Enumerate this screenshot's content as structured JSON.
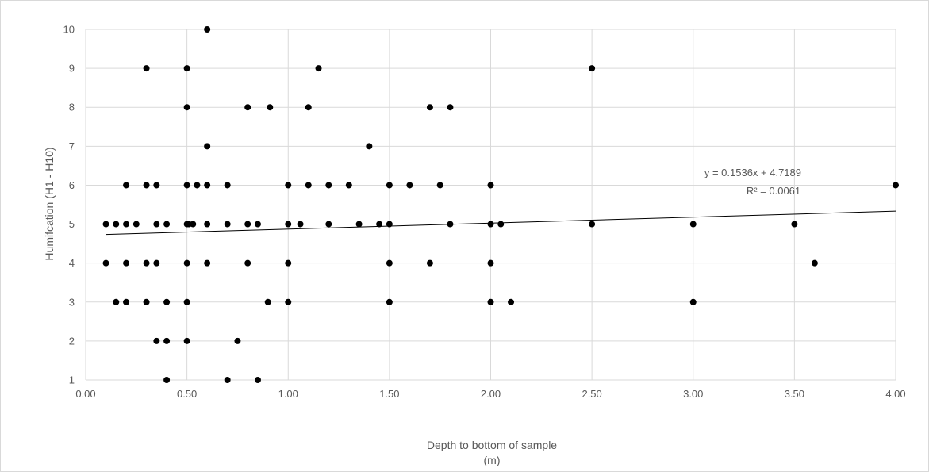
{
  "chart_data": {
    "type": "scatter",
    "title": "",
    "xlabel": "Depth to bottom of sample",
    "xlabel_line2": "(m)",
    "ylabel": "Humifcation (H1 - H10)",
    "xlim": [
      0,
      4
    ],
    "ylim": [
      1,
      10
    ],
    "x_ticks": [
      "0.00",
      "0.50",
      "1.00",
      "1.50",
      "2.00",
      "2.50",
      "3.00",
      "3.50",
      "4.00"
    ],
    "y_ticks": [
      "1",
      "2",
      "3",
      "4",
      "5",
      "6",
      "7",
      "8",
      "9",
      "10"
    ],
    "grid": true,
    "legend": "none",
    "marker_color": "#000000",
    "points": [
      {
        "x": 0.6,
        "y": 10
      },
      {
        "x": 0.3,
        "y": 9
      },
      {
        "x": 0.5,
        "y": 9
      },
      {
        "x": 1.15,
        "y": 9
      },
      {
        "x": 2.5,
        "y": 9
      },
      {
        "x": 0.5,
        "y": 8
      },
      {
        "x": 0.8,
        "y": 8
      },
      {
        "x": 0.91,
        "y": 8
      },
      {
        "x": 1.1,
        "y": 8
      },
      {
        "x": 1.7,
        "y": 8
      },
      {
        "x": 1.8,
        "y": 8
      },
      {
        "x": 0.6,
        "y": 7
      },
      {
        "x": 1.4,
        "y": 7
      },
      {
        "x": 0.2,
        "y": 6
      },
      {
        "x": 0.3,
        "y": 6
      },
      {
        "x": 0.35,
        "y": 6
      },
      {
        "x": 0.5,
        "y": 6
      },
      {
        "x": 0.55,
        "y": 6
      },
      {
        "x": 0.6,
        "y": 6
      },
      {
        "x": 0.7,
        "y": 6
      },
      {
        "x": 1.0,
        "y": 6
      },
      {
        "x": 1.1,
        "y": 6
      },
      {
        "x": 1.2,
        "y": 6
      },
      {
        "x": 1.3,
        "y": 6
      },
      {
        "x": 1.5,
        "y": 6
      },
      {
        "x": 1.6,
        "y": 6
      },
      {
        "x": 1.75,
        "y": 6
      },
      {
        "x": 2.0,
        "y": 6
      },
      {
        "x": 4.0,
        "y": 6
      },
      {
        "x": 0.1,
        "y": 5
      },
      {
        "x": 0.15,
        "y": 5
      },
      {
        "x": 0.2,
        "y": 5
      },
      {
        "x": 0.25,
        "y": 5
      },
      {
        "x": 0.35,
        "y": 5
      },
      {
        "x": 0.4,
        "y": 5
      },
      {
        "x": 0.5,
        "y": 5
      },
      {
        "x": 0.51,
        "y": 5
      },
      {
        "x": 0.53,
        "y": 5
      },
      {
        "x": 0.6,
        "y": 5
      },
      {
        "x": 0.7,
        "y": 5
      },
      {
        "x": 0.8,
        "y": 5
      },
      {
        "x": 0.85,
        "y": 5
      },
      {
        "x": 1.0,
        "y": 5
      },
      {
        "x": 1.06,
        "y": 5
      },
      {
        "x": 1.2,
        "y": 5
      },
      {
        "x": 1.35,
        "y": 5
      },
      {
        "x": 1.45,
        "y": 5
      },
      {
        "x": 1.5,
        "y": 5
      },
      {
        "x": 1.8,
        "y": 5
      },
      {
        "x": 2.0,
        "y": 5
      },
      {
        "x": 2.05,
        "y": 5
      },
      {
        "x": 2.5,
        "y": 5
      },
      {
        "x": 3.0,
        "y": 5
      },
      {
        "x": 3.5,
        "y": 5
      },
      {
        "x": 0.1,
        "y": 4
      },
      {
        "x": 0.2,
        "y": 4
      },
      {
        "x": 0.3,
        "y": 4
      },
      {
        "x": 0.35,
        "y": 4
      },
      {
        "x": 0.5,
        "y": 4
      },
      {
        "x": 0.6,
        "y": 4
      },
      {
        "x": 0.8,
        "y": 4
      },
      {
        "x": 1.0,
        "y": 4
      },
      {
        "x": 1.5,
        "y": 4
      },
      {
        "x": 1.7,
        "y": 4
      },
      {
        "x": 2.0,
        "y": 4
      },
      {
        "x": 3.6,
        "y": 4
      },
      {
        "x": 0.15,
        "y": 3
      },
      {
        "x": 0.2,
        "y": 3
      },
      {
        "x": 0.3,
        "y": 3
      },
      {
        "x": 0.4,
        "y": 3
      },
      {
        "x": 0.5,
        "y": 3
      },
      {
        "x": 0.9,
        "y": 3
      },
      {
        "x": 1.0,
        "y": 3
      },
      {
        "x": 1.5,
        "y": 3
      },
      {
        "x": 2.0,
        "y": 3
      },
      {
        "x": 2.1,
        "y": 3
      },
      {
        "x": 3.0,
        "y": 3
      },
      {
        "x": 0.35,
        "y": 2
      },
      {
        "x": 0.4,
        "y": 2
      },
      {
        "x": 0.5,
        "y": 2
      },
      {
        "x": 0.75,
        "y": 2
      },
      {
        "x": 0.4,
        "y": 1
      },
      {
        "x": 0.7,
        "y": 1
      },
      {
        "x": 0.85,
        "y": 1
      }
    ],
    "trendline": {
      "type": "linear",
      "slope": 0.1536,
      "intercept": 4.7189,
      "x_range": [
        0.1,
        4.0
      ],
      "equation": "y = 0.1536x + 4.7189",
      "r_squared": "R² = 0.0061"
    }
  }
}
